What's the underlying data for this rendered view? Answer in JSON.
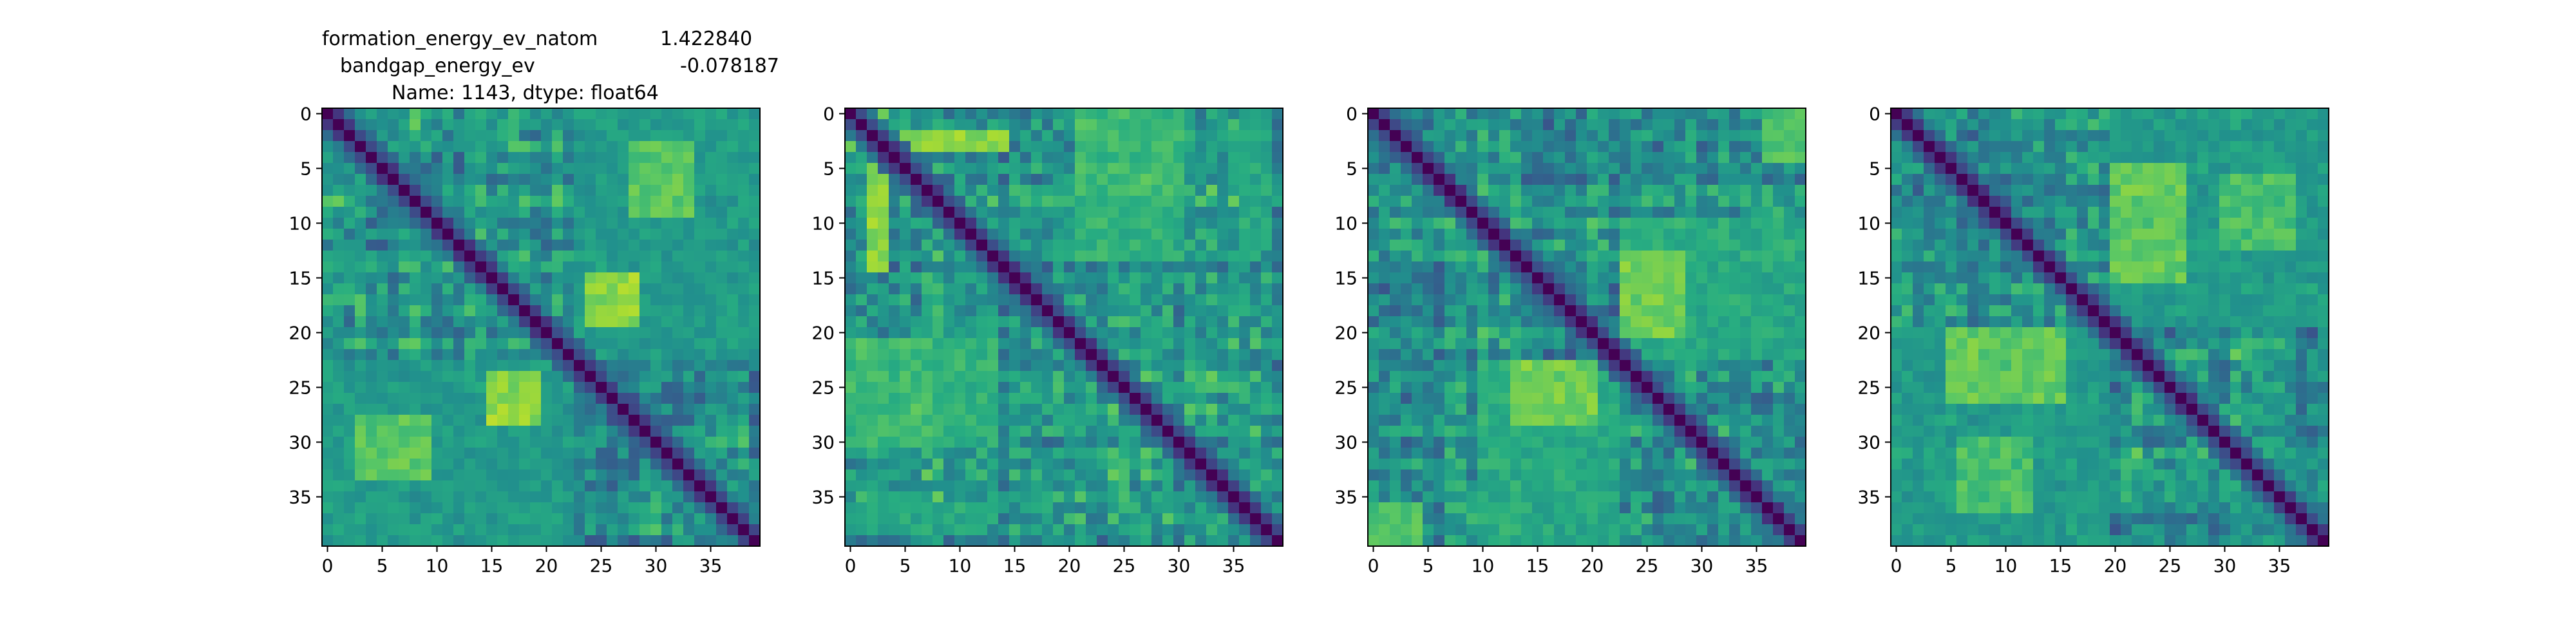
{
  "figure": {
    "title_lines": [
      {
        "left": "formation_energy_ev_natom",
        "right": "1.422840"
      },
      {
        "left": "bandgap_energy_ev",
        "right": "-0.078187"
      },
      {
        "left": "Name: 1143, dtype: float64",
        "right": ""
      }
    ]
  },
  "chart_data": [
    {
      "type": "heatmap",
      "title": "",
      "xlabel": "",
      "ylabel": "",
      "size": 40,
      "colormap": "viridis",
      "x_ticks": [
        0,
        5,
        10,
        15,
        20,
        25,
        30,
        35
      ],
      "y_ticks": [
        0,
        5,
        10,
        15,
        20,
        25,
        30,
        35
      ],
      "xlim": [
        0,
        39
      ],
      "ylim": [
        39,
        0
      ],
      "diagonal_value": 0.0,
      "value_range": [
        0,
        1
      ],
      "blocks": [
        {
          "rows": [
            23,
            39
          ],
          "cols": [
            0,
            22
          ],
          "value": 0.55
        },
        {
          "rows": [
            0,
            22
          ],
          "cols": [
            23,
            39
          ],
          "value": 0.55
        },
        {
          "rows": [
            15,
            19
          ],
          "cols": [
            24,
            28
          ],
          "value": 0.85
        },
        {
          "rows": [
            24,
            28
          ],
          "cols": [
            15,
            19
          ],
          "value": 0.85
        },
        {
          "rows": [
            3,
            9
          ],
          "cols": [
            28,
            33
          ],
          "value": 0.75
        },
        {
          "rows": [
            28,
            33
          ],
          "cols": [
            3,
            9
          ],
          "value": 0.75
        }
      ]
    },
    {
      "type": "heatmap",
      "title": "",
      "xlabel": "",
      "ylabel": "",
      "size": 40,
      "colormap": "viridis",
      "x_ticks": [
        0,
        5,
        10,
        15,
        20,
        25,
        30,
        35
      ],
      "y_ticks": [
        0,
        5,
        10,
        15,
        20,
        25,
        30,
        35
      ],
      "xlim": [
        0,
        39
      ],
      "ylim": [
        39,
        0
      ],
      "diagonal_value": 0.0,
      "value_range": [
        0,
        1
      ],
      "blocks": [
        {
          "rows": [
            0,
            7
          ],
          "cols": [
            21,
            30
          ],
          "value": 0.7
        },
        {
          "rows": [
            21,
            30
          ],
          "cols": [
            0,
            7
          ],
          "value": 0.7
        },
        {
          "rows": [
            8,
            13
          ],
          "cols": [
            21,
            30
          ],
          "value": 0.65
        },
        {
          "rows": [
            21,
            30
          ],
          "cols": [
            8,
            13
          ],
          "value": 0.65
        },
        {
          "rows": [
            2,
            3
          ],
          "cols": [
            0,
            14
          ],
          "value": 0.85
        },
        {
          "rows": [
            0,
            14
          ],
          "cols": [
            2,
            3
          ],
          "value": 0.85
        },
        {
          "rows": [
            36,
            38
          ],
          "cols": [
            0,
            12
          ],
          "value": 0.6
        },
        {
          "rows": [
            0,
            12
          ],
          "cols": [
            36,
            38
          ],
          "value": 0.6
        }
      ]
    },
    {
      "type": "heatmap",
      "title": "",
      "xlabel": "",
      "ylabel": "",
      "size": 40,
      "colormap": "viridis",
      "x_ticks": [
        0,
        5,
        10,
        15,
        20,
        25,
        30,
        35
      ],
      "y_ticks": [
        0,
        5,
        10,
        15,
        20,
        25,
        30,
        35
      ],
      "xlim": [
        0,
        39
      ],
      "ylim": [
        39,
        0
      ],
      "diagonal_value": 0.0,
      "value_range": [
        0,
        1
      ],
      "blocks": [
        {
          "rows": [
            23,
            39
          ],
          "cols": [
            10,
            22
          ],
          "value": 0.62
        },
        {
          "rows": [
            10,
            22
          ],
          "cols": [
            23,
            39
          ],
          "value": 0.62
        },
        {
          "rows": [
            23,
            28
          ],
          "cols": [
            13,
            20
          ],
          "value": 0.8
        },
        {
          "rows": [
            13,
            20
          ],
          "cols": [
            23,
            28
          ],
          "value": 0.8
        },
        {
          "rows": [
            36,
            39
          ],
          "cols": [
            0,
            4
          ],
          "value": 0.75
        },
        {
          "rows": [
            0,
            4
          ],
          "cols": [
            36,
            39
          ],
          "value": 0.75
        }
      ]
    },
    {
      "type": "heatmap",
      "title": "",
      "xlabel": "",
      "ylabel": "",
      "size": 40,
      "colormap": "viridis",
      "x_ticks": [
        0,
        5,
        10,
        15,
        20,
        25,
        30,
        35
      ],
      "y_ticks": [
        0,
        5,
        10,
        15,
        20,
        25,
        30,
        35
      ],
      "xlim": [
        0,
        39
      ],
      "ylim": [
        39,
        0
      ],
      "diagonal_value": 0.0,
      "value_range": [
        0,
        1
      ],
      "blocks": [
        {
          "rows": [
            20,
            39
          ],
          "cols": [
            0,
            19
          ],
          "value": 0.55
        },
        {
          "rows": [
            0,
            19
          ],
          "cols": [
            20,
            39
          ],
          "value": 0.55
        },
        {
          "rows": [
            20,
            26
          ],
          "cols": [
            5,
            15
          ],
          "value": 0.78
        },
        {
          "rows": [
            5,
            15
          ],
          "cols": [
            20,
            26
          ],
          "value": 0.78
        },
        {
          "rows": [
            30,
            36
          ],
          "cols": [
            6,
            12
          ],
          "value": 0.72
        },
        {
          "rows": [
            6,
            12
          ],
          "cols": [
            30,
            36
          ],
          "value": 0.72
        }
      ]
    }
  ]
}
